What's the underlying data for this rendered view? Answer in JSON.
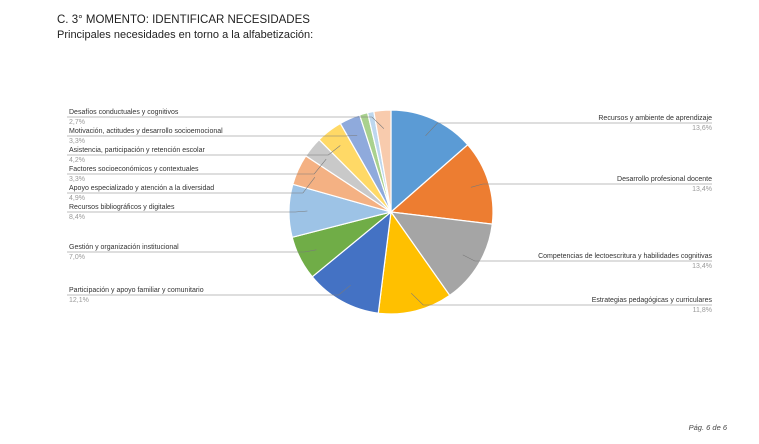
{
  "page": {
    "title": "C. 3° MOMENTO: IDENTIFICAR NECESIDADES",
    "subtitle": "Principales necesidades en torno a la alfabetización:",
    "footer": "Pág. 6 de 6"
  },
  "chart_data": {
    "type": "pie",
    "title": "",
    "legend": "none",
    "slices": [
      {
        "label": "Recursos y ambiente de aprendizaje",
        "value": 13.6,
        "display": "13,6%",
        "color": "#5B9BD5",
        "side": "right"
      },
      {
        "label": "Desarrollo profesional docente",
        "value": 13.4,
        "display": "13,4%",
        "color": "#ED7D31",
        "side": "right"
      },
      {
        "label": "Competencias de lectoescritura y habilidades cognitivas",
        "value": 13.4,
        "display": "13,4%",
        "color": "#A5A5A5",
        "side": "right"
      },
      {
        "label": "Estrategias pedagógicas y curriculares",
        "value": 11.8,
        "display": "11,8%",
        "color": "#FFC000",
        "side": "right"
      },
      {
        "label": "Participación y apoyo familiar y comunitario",
        "value": 12.1,
        "display": "12,1%",
        "color": "#4472C4",
        "side": "left"
      },
      {
        "label": "Gestión y organización institucional",
        "value": 7.0,
        "display": "7,0%",
        "color": "#70AD47",
        "side": "left"
      },
      {
        "label": "Recursos bibliográficos y digitales",
        "value": 8.4,
        "display": "8,4%",
        "color": "#9DC3E6",
        "side": "left"
      },
      {
        "label": "Apoyo especializado y atención a la diversidad",
        "value": 4.9,
        "display": "4,9%",
        "color": "#F4B183",
        "side": "left"
      },
      {
        "label": "Factores socioeconómicos y contextuales",
        "value": 3.3,
        "display": "3,3%",
        "color": "#C9C9C9",
        "side": "left"
      },
      {
        "label": "Asistencia, participación y retención escolar",
        "value": 4.2,
        "display": "4,2%",
        "color": "#FFD966",
        "side": "left"
      },
      {
        "label": "Motivación, actitudes y desarrollo socioemocional",
        "value": 3.3,
        "display": "3,3%",
        "color": "#8FAADC",
        "side": "left"
      },
      {
        "label": "",
        "value": 1.3,
        "display": "",
        "color": "#A9D18E",
        "side": "none"
      },
      {
        "label": "",
        "value": 1.0,
        "display": "",
        "color": "#BDD7EE",
        "side": "none"
      },
      {
        "label": "Desafíos conductuales y cognitivos",
        "value": 2.7,
        "display": "2,7%",
        "color": "#F8CBAD",
        "side": "left"
      }
    ]
  }
}
